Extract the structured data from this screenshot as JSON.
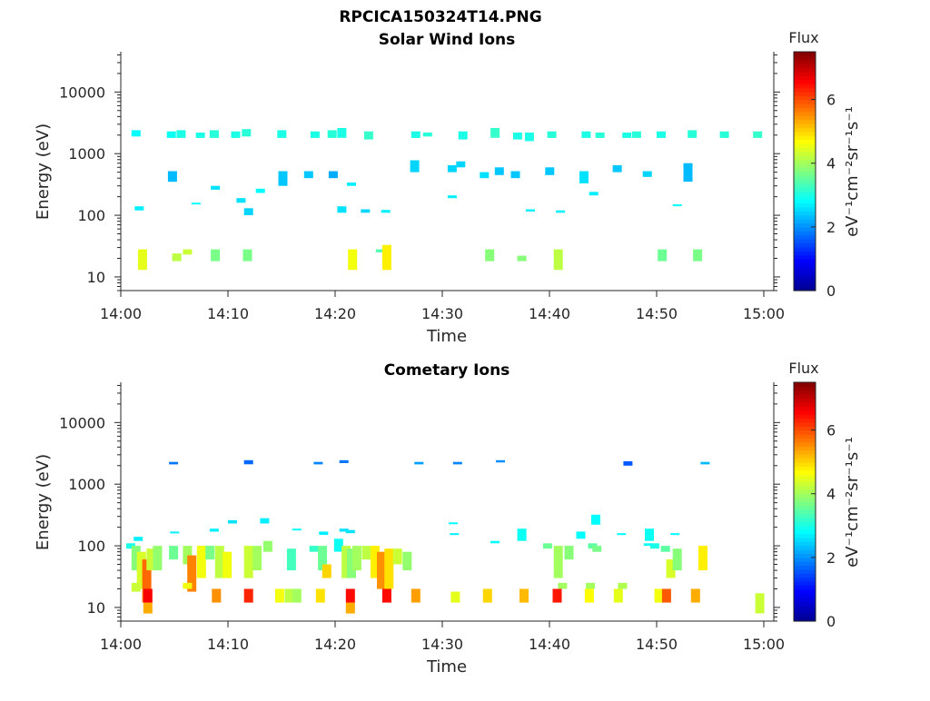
{
  "figure": {
    "title": "RPCICA150324T14.PNG"
  },
  "colormap": [
    "#00008f",
    "#0000ff",
    "#0080ff",
    "#00ffff",
    "#80ff80",
    "#ffff00",
    "#ff8000",
    "#ff0000",
    "#800000"
  ],
  "chart_data": [
    {
      "type": "heatmap",
      "title": "Solar Wind Ions",
      "xlabel": "Time",
      "ylabel": "Energy (eV)",
      "xlim": [
        "14:00",
        "15:00"
      ],
      "xticks": [
        "14:00",
        "14:10",
        "14:20",
        "14:30",
        "14:40",
        "14:50",
        "15:00"
      ],
      "yscale": "log",
      "ylim": [
        6,
        45000
      ],
      "yticks": [
        10,
        100,
        1000,
        10000
      ],
      "yticklabels": [
        "10",
        "100",
        "1000",
        "10000"
      ],
      "colorbar": {
        "label": "Flux",
        "unit": "eV⁻¹cm⁻²sr⁻¹s⁻¹",
        "range": [
          0,
          7.5
        ],
        "ticks": [
          0,
          2,
          4,
          6
        ]
      },
      "cells": [
        [
          1.0,
          1900,
          2400,
          2.8
        ],
        [
          4.3,
          1800,
          2300,
          2.9
        ],
        [
          5.2,
          1800,
          2400,
          3.0
        ],
        [
          7.0,
          1800,
          2200,
          3.0
        ],
        [
          8.3,
          1800,
          2400,
          3.1
        ],
        [
          10.3,
          1800,
          2300,
          3.0
        ],
        [
          11.3,
          1900,
          2500,
          3.1
        ],
        [
          14.6,
          1800,
          2400,
          3.0
        ],
        [
          17.7,
          1800,
          2300,
          3.0
        ],
        [
          19.3,
          1800,
          2400,
          3.1
        ],
        [
          20.2,
          1800,
          2600,
          3.0
        ],
        [
          22.7,
          1700,
          2300,
          3.2
        ],
        [
          27.1,
          1800,
          2300,
          3.0
        ],
        [
          28.2,
          1900,
          2200,
          3.1
        ],
        [
          31.5,
          1700,
          2300,
          3.0
        ],
        [
          34.5,
          1800,
          2600,
          3.2
        ],
        [
          36.6,
          1700,
          2200,
          3.0
        ],
        [
          37.7,
          1600,
          2200,
          3.0
        ],
        [
          39.8,
          1800,
          2300,
          3.1
        ],
        [
          43.0,
          1800,
          2300,
          3.0
        ],
        [
          44.3,
          1800,
          2200,
          3.1
        ],
        [
          46.8,
          1800,
          2200,
          3.0
        ],
        [
          47.7,
          1800,
          2300,
          3.1
        ],
        [
          50.0,
          1800,
          2300,
          3.0
        ],
        [
          52.9,
          1800,
          2400,
          3.1
        ],
        [
          55.9,
          1800,
          2300,
          3.1
        ],
        [
          59.0,
          1800,
          2300,
          3.2
        ],
        [
          4.4,
          350,
          520,
          2.3
        ],
        [
          8.4,
          260,
          300,
          2.6
        ],
        [
          10.8,
          160,
          190,
          2.6
        ],
        [
          11.5,
          100,
          130,
          2.5
        ],
        [
          12.6,
          230,
          270,
          2.8
        ],
        [
          14.7,
          300,
          520,
          2.4
        ],
        [
          17.1,
          400,
          520,
          2.4
        ],
        [
          19.4,
          400,
          520,
          2.2
        ],
        [
          20.2,
          110,
          140,
          2.6
        ],
        [
          21.1,
          300,
          340,
          2.7
        ],
        [
          22.4,
          110,
          125,
          2.5
        ],
        [
          24.3,
          110,
          122,
          2.7
        ],
        [
          27.0,
          500,
          780,
          2.5
        ],
        [
          30.5,
          500,
          650,
          2.5
        ],
        [
          31.3,
          600,
          750,
          2.5
        ],
        [
          33.5,
          400,
          500,
          2.6
        ],
        [
          34.9,
          450,
          600,
          2.4
        ],
        [
          36.4,
          400,
          520,
          2.4
        ],
        [
          37.8,
          115,
          125,
          2.7
        ],
        [
          40.6,
          110,
          120,
          2.7
        ],
        [
          39.6,
          450,
          600,
          2.4
        ],
        [
          42.8,
          330,
          520,
          2.6
        ],
        [
          43.7,
          210,
          240,
          2.7
        ],
        [
          45.9,
          500,
          650,
          2.4
        ],
        [
          48.7,
          420,
          520,
          2.5
        ],
        [
          51.5,
          140,
          150,
          2.8
        ],
        [
          52.5,
          350,
          700,
          2.3
        ],
        [
          1.3,
          120,
          140,
          2.7
        ],
        [
          6.6,
          150,
          160,
          2.8
        ],
        [
          30.5,
          190,
          210,
          2.7
        ],
        [
          1.6,
          13,
          28,
          4.5
        ],
        [
          4.8,
          18,
          24,
          4.2
        ],
        [
          5.8,
          23,
          28,
          4.3
        ],
        [
          8.4,
          18,
          28,
          3.7
        ],
        [
          11.4,
          18,
          28,
          3.7
        ],
        [
          21.2,
          13,
          28,
          4.6
        ],
        [
          23.8,
          25,
          28,
          3.4
        ],
        [
          24.4,
          13,
          33,
          4.8
        ],
        [
          34.0,
          18,
          28,
          3.8
        ],
        [
          37.0,
          18,
          22,
          3.8
        ],
        [
          40.4,
          13,
          28,
          4.2
        ],
        [
          50.1,
          18,
          28,
          3.6
        ],
        [
          53.4,
          18,
          28,
          3.7
        ]
      ]
    },
    {
      "type": "heatmap",
      "title": "Cometary Ions",
      "xlabel": "Time",
      "ylabel": "Energy (eV)",
      "xlim": [
        "14:00",
        "15:00"
      ],
      "xticks": [
        "14:00",
        "14:10",
        "14:20",
        "14:30",
        "14:40",
        "14:50",
        "15:00"
      ],
      "yscale": "log",
      "ylim": [
        6,
        45000
      ],
      "yticks": [
        10,
        100,
        1000,
        10000
      ],
      "yticklabels": [
        "10",
        "100",
        "1000",
        "10000"
      ],
      "colorbar": {
        "label": "Flux",
        "unit": "eV⁻¹cm⁻²sr⁻¹s⁻¹",
        "range": [
          0,
          7.5
        ],
        "ticks": [
          0,
          2,
          4,
          6
        ]
      },
      "cells": [
        [
          4.5,
          2100,
          2300,
          1.8
        ],
        [
          11.5,
          2100,
          2450,
          1.7
        ],
        [
          18.0,
          2100,
          2300,
          1.9
        ],
        [
          20.4,
          2200,
          2450,
          1.8
        ],
        [
          27.4,
          2100,
          2300,
          2.1
        ],
        [
          31.0,
          2100,
          2300,
          1.9
        ],
        [
          35.0,
          2250,
          2450,
          2.0
        ],
        [
          46.9,
          2000,
          2350,
          1.6
        ],
        [
          54.1,
          2100,
          2300,
          2.3
        ],
        [
          0.5,
          90,
          110,
          3.0
        ],
        [
          1.0,
          40,
          100,
          3.8
        ],
        [
          1.5,
          20,
          80,
          4.4
        ],
        [
          2.0,
          12,
          60,
          5.8
        ],
        [
          2.4,
          40,
          90,
          4.3
        ],
        [
          3.0,
          40,
          100,
          3.9
        ],
        [
          4.5,
          60,
          100,
          3.6
        ],
        [
          5.8,
          50,
          100,
          4.0
        ],
        [
          6.2,
          18,
          70,
          5.6
        ],
        [
          7.1,
          30,
          100,
          4.6
        ],
        [
          7.9,
          60,
          100,
          3.7
        ],
        [
          8.8,
          30,
          100,
          4.2
        ],
        [
          9.5,
          30,
          80,
          4.6
        ],
        [
          11.5,
          30,
          100,
          4.3
        ],
        [
          12.3,
          40,
          100,
          4.0
        ],
        [
          13.3,
          80,
          120,
          3.9
        ],
        [
          15.5,
          40,
          90,
          3.3
        ],
        [
          17.6,
          80,
          100,
          3.2
        ],
        [
          18.4,
          40,
          100,
          3.6
        ],
        [
          18.8,
          30,
          50,
          5.0
        ],
        [
          19.9,
          80,
          130,
          2.9
        ],
        [
          20.6,
          30,
          100,
          4.2
        ],
        [
          21.1,
          30,
          90,
          3.8
        ],
        [
          21.6,
          40,
          100,
          4.0
        ],
        [
          22.5,
          60,
          100,
          4.2
        ],
        [
          23.3,
          30,
          100,
          4.8
        ],
        [
          23.9,
          20,
          80,
          5.5
        ],
        [
          24.6,
          20,
          90,
          4.9
        ],
        [
          25.4,
          50,
          90,
          4.3
        ],
        [
          26.3,
          40,
          80,
          3.9
        ],
        [
          39.4,
          90,
          110,
          3.6
        ],
        [
          40.4,
          30,
          100,
          4.0
        ],
        [
          41.4,
          60,
          100,
          3.8
        ],
        [
          43.6,
          90,
          110,
          3.5
        ],
        [
          44.0,
          80,
          100,
          3.7
        ],
        [
          49.4,
          90,
          110,
          3.0
        ],
        [
          50.4,
          80,
          100,
          3.5
        ],
        [
          50.9,
          30,
          60,
          4.4
        ],
        [
          51.5,
          40,
          90,
          3.8
        ],
        [
          53.9,
          40,
          100,
          4.8
        ],
        [
          1.2,
          120,
          140,
          2.7
        ],
        [
          4.6,
          160,
          170,
          2.7
        ],
        [
          8.3,
          170,
          190,
          2.7
        ],
        [
          10.0,
          230,
          260,
          2.6
        ],
        [
          13.0,
          230,
          280,
          2.7
        ],
        [
          16.0,
          180,
          190,
          2.8
        ],
        [
          18.5,
          150,
          170,
          2.7
        ],
        [
          20.4,
          170,
          190,
          2.6
        ],
        [
          21.0,
          160,
          180,
          2.6
        ],
        [
          30.6,
          230,
          240,
          2.8
        ],
        [
          30.7,
          150,
          160,
          2.7
        ],
        [
          34.5,
          110,
          120,
          2.8
        ],
        [
          37.0,
          120,
          190,
          2.9
        ],
        [
          42.5,
          130,
          170,
          2.8
        ],
        [
          43.9,
          220,
          320,
          2.8
        ],
        [
          46.3,
          150,
          160,
          2.8
        ],
        [
          48.9,
          120,
          190,
          2.9
        ],
        [
          48.8,
          100,
          110,
          2.9
        ],
        [
          51.3,
          150,
          160,
          2.8
        ],
        [
          2.1,
          8,
          12,
          5.3
        ],
        [
          2.1,
          12,
          20,
          6.6
        ],
        [
          8.5,
          12,
          20,
          5.5
        ],
        [
          11.5,
          12,
          20,
          6.3
        ],
        [
          14.4,
          12,
          20,
          4.6
        ],
        [
          15.3,
          12,
          20,
          4.2
        ],
        [
          16.0,
          12,
          20,
          4.0
        ],
        [
          18.2,
          12,
          20,
          4.9
        ],
        [
          21.0,
          8,
          12,
          5.3
        ],
        [
          21.0,
          12,
          20,
          6.5
        ],
        [
          24.4,
          12,
          20,
          6.5
        ],
        [
          27.1,
          12,
          20,
          5.4
        ],
        [
          30.8,
          12,
          18,
          4.5
        ],
        [
          33.8,
          12,
          20,
          5.0
        ],
        [
          37.2,
          12,
          20,
          5.2
        ],
        [
          40.3,
          12,
          20,
          6.4
        ],
        [
          43.3,
          12,
          20,
          4.7
        ],
        [
          46.0,
          12,
          20,
          4.5
        ],
        [
          49.8,
          12,
          20,
          4.6
        ],
        [
          50.5,
          12,
          20,
          5.9
        ],
        [
          53.2,
          12,
          20,
          5.3
        ],
        [
          59.2,
          8,
          17,
          4.3
        ],
        [
          1.0,
          18,
          25,
          4.3
        ],
        [
          5.8,
          20,
          25,
          4.6
        ],
        [
          40.8,
          20,
          25,
          4.0
        ],
        [
          43.4,
          20,
          25,
          4.0
        ],
        [
          46.4,
          20,
          25,
          4.1
        ]
      ]
    }
  ]
}
